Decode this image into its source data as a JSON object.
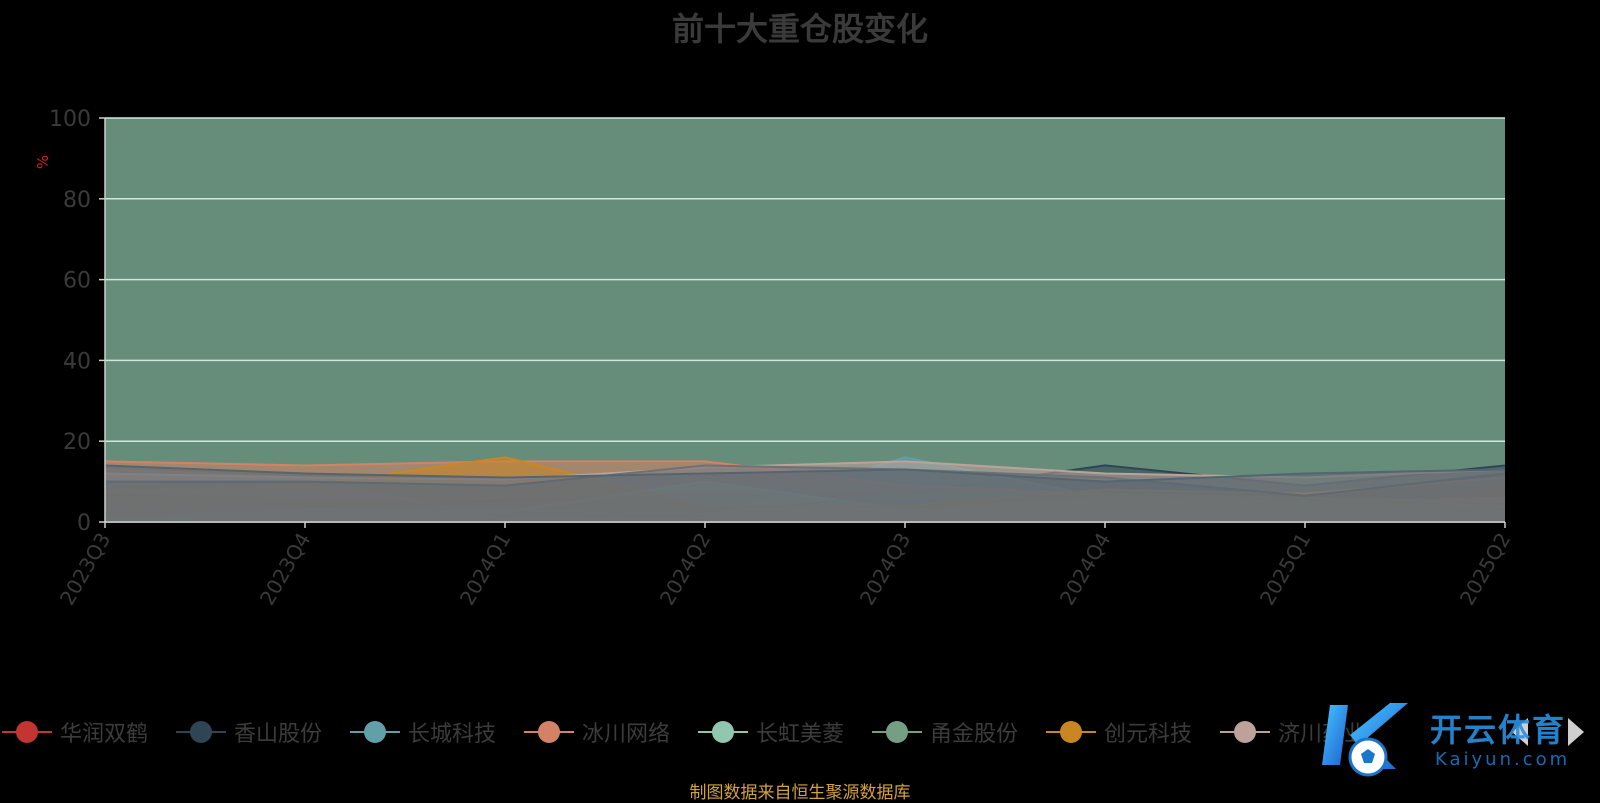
{
  "chart_data": {
    "type": "area",
    "title": "前十大重仓股变化",
    "ylabel": "%",
    "ylim": [
      0,
      100
    ],
    "yticks": [
      "0",
      "20",
      "40",
      "60",
      "80",
      "100"
    ],
    "categories": [
      "2023Q3",
      "2023Q4",
      "2024Q1",
      "2024Q2",
      "2024Q3",
      "2024Q4",
      "2025Q1",
      "2025Q2"
    ],
    "grid": true,
    "legend_position": "bottom",
    "stacked": true,
    "series": [
      {
        "name": "华润双鹤",
        "color": "#c23531",
        "values": [
          7.0,
          5.5,
          5.0,
          7.0,
          6.0,
          2.0,
          2.0,
          8.0
        ]
      },
      {
        "name": "香山股份",
        "color": "#2f4554",
        "values": [
          4.0,
          2.5,
          5.5,
          6.0,
          7.0,
          14.0,
          9.0,
          14.0
        ]
      },
      {
        "name": "长城科技",
        "color": "#61a0a8",
        "values": [
          13.0,
          11.0,
          0.5,
          1.0,
          16.0,
          6.0,
          6.0,
          5.0
        ]
      },
      {
        "name": "冰川网络",
        "color": "#d48265",
        "values": [
          15.0,
          14.0,
          15.0,
          15.0,
          9.0,
          7.0,
          5.0,
          6.0
        ]
      },
      {
        "name": "长虹美菱",
        "color": "#91c7ae",
        "values": [
          1.0,
          2.0,
          2.5,
          10.0,
          3.0,
          6.0,
          5.0,
          4.0
        ]
      },
      {
        "name": "甬金股份",
        "color": "#749f83",
        "values": [
          1.0,
          3.0,
          3.0,
          2.0,
          7.0,
          7.0,
          6.0,
          3.0
        ]
      },
      {
        "name": "创元科技",
        "color": "#ca8622",
        "values": [
          8.0,
          9.0,
          16.0,
          4.0,
          4.0,
          8.0,
          7.0,
          11.0
        ]
      },
      {
        "name": "济川药业",
        "color": "#bda29a",
        "values": [
          12.0,
          11.0,
          10.5,
          13.5,
          15.0,
          12.0,
          11.0,
          13.0
        ]
      },
      {
        "name": "",
        "color": "#6e7074",
        "values": [
          10.0,
          10.0,
          9.0,
          14.0,
          13.0,
          11.0,
          6.5,
          12.0
        ]
      },
      {
        "name": "",
        "color": "#546570",
        "values": [
          14.0,
          12.0,
          11.0,
          12.0,
          13.0,
          10.0,
          12.0,
          13.0
        ]
      }
    ]
  },
  "legend": {
    "items": [
      {
        "label": "华润双鹤",
        "color": "#c23531"
      },
      {
        "label": "香山股份",
        "color": "#2f4554"
      },
      {
        "label": "长城科技",
        "color": "#61a0a8"
      },
      {
        "label": "冰川网络",
        "color": "#d48265"
      },
      {
        "label": "长虹美菱",
        "color": "#91c7ae"
      },
      {
        "label": "甬金股份",
        "color": "#749f83"
      },
      {
        "label": "创元科技",
        "color": "#ca8622"
      },
      {
        "label": "济川药业",
        "color": "#bda29a"
      }
    ]
  },
  "source_note": "制图数据来自恒生聚源数据库",
  "watermark": {
    "text": "开云体育",
    "sub": "Kaiyun.com"
  },
  "colors": {
    "plot_background": "#668c7a",
    "grid": "#cfe8dd",
    "axis_text": "#3a3a3a",
    "ylabel": "#cc2222"
  }
}
